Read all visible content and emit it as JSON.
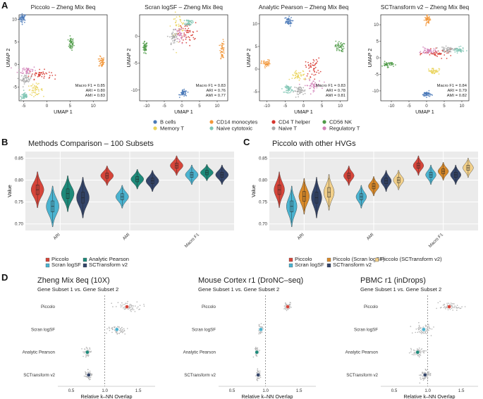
{
  "panel_labels": [
    "A",
    "B",
    "C",
    "D"
  ],
  "colors": {
    "B cells": "#4a79b8",
    "CD14 monocytes": "#f2973a",
    "CD4 T helper": "#d6342c",
    "CD56 NK": "#4e9a46",
    "Memory T": "#ead35a",
    "Naive cytotoxic": "#7fc6b4",
    "Naive T": "#a7a7a7",
    "Regulatory T": "#d283b8",
    "Piccolo": "#d6453a",
    "Scran logSF": "#4bb3d0",
    "Analytic Pearson": "#1e8a7a",
    "SCTransform v2": "#34456a",
    "Piccolo (Scran logSF)": "#d98a2a",
    "Piccolo (SCTransform v2)": "#f2d08a"
  },
  "panelA": {
    "x_label": "UMAP 1",
    "y_label": "UMAP 2",
    "legend": [
      {
        "label": "B cells",
        "icon": "dot"
      },
      {
        "label": "CD14 monocytes",
        "icon": "dot"
      },
      {
        "label": "CD4 T helper",
        "icon": "dot"
      },
      {
        "label": "CD56 NK",
        "icon": "dot"
      },
      {
        "label": "Memory T",
        "icon": "dot"
      },
      {
        "label": "Naive cytotoxic",
        "icon": "dot"
      },
      {
        "label": "Naive T",
        "icon": "dot"
      },
      {
        "label": "Regulatory T",
        "icon": "dot"
      }
    ],
    "plots": [
      {
        "title": "Piccolo – Zheng Mix 8eq",
        "xlim": [
          -6,
          13
        ],
        "ylim": [
          -8,
          11
        ],
        "xticks": [
          "-5",
          "0",
          "5",
          "10"
        ],
        "xtick_vals": [
          -5,
          0,
          5,
          10
        ],
        "yticks": [
          "-5",
          "0",
          "5",
          "10"
        ],
        "ytick_vals": [
          -5,
          0,
          5,
          10
        ],
        "metrics": [
          "Macro F1 = 0.85",
          "ARI = 0.80",
          "AMI = 0.83"
        ],
        "clusters": [
          {
            "type": "B cells",
            "x": -5.2,
            "y": 10.2,
            "sx": 0.35,
            "sy": 0.5
          },
          {
            "type": "CD56 NK",
            "x": 5.2,
            "y": 4.6,
            "sx": 0.3,
            "sy": 0.7
          },
          {
            "type": "CD14 monocytes",
            "x": 11.8,
            "y": 0.6,
            "sx": 0.3,
            "sy": 0.6
          },
          {
            "type": "Regulatory T",
            "x": -4.2,
            "y": -1.3,
            "sx": 1.0,
            "sy": 0.5
          },
          {
            "type": "CD4 T helper",
            "x": -1.5,
            "y": -2.2,
            "sx": 1.2,
            "sy": 0.5
          },
          {
            "type": "Naive T",
            "x": -4.5,
            "y": -3.2,
            "sx": 0.6,
            "sy": 0.5
          },
          {
            "type": "Memory T",
            "x": -2.5,
            "y": -5.5,
            "sx": 0.8,
            "sy": 0.6
          },
          {
            "type": "Naive cytotoxic",
            "x": -4.8,
            "y": -7.0,
            "sx": 0.4,
            "sy": 0.4
          }
        ]
      },
      {
        "title": "Scran logSF – Zheng Mix 8eq",
        "xlim": [
          -12,
          13
        ],
        "ylim": [
          -12,
          4
        ],
        "xticks": [
          "-10",
          "-5",
          "0",
          "5",
          "10"
        ],
        "xtick_vals": [
          -10,
          -5,
          0,
          5,
          10
        ],
        "yticks": [
          "-10",
          "-5",
          "0"
        ],
        "ytick_vals": [
          -10,
          -5,
          0
        ],
        "metrics": [
          "Macro F1 = 0.83",
          "ARI = 0.76",
          "AMI = 0.77"
        ],
        "clusters": [
          {
            "type": "CD56 NK",
            "x": -10.5,
            "y": -2.2,
            "sx": 0.35,
            "sy": 0.6
          },
          {
            "type": "B cells",
            "x": 0.5,
            "y": -10.6,
            "sx": 0.5,
            "sy": 0.3
          },
          {
            "type": "CD14 monocytes",
            "x": 11.5,
            "y": -2.5,
            "sx": 0.3,
            "sy": 0.8
          },
          {
            "type": "Memory T",
            "x": -1.0,
            "y": 1.8,
            "sx": 1.0,
            "sy": 1.2
          },
          {
            "type": "CD4 T helper",
            "x": 1.5,
            "y": 0.5,
            "sx": 1.2,
            "sy": 1.0
          },
          {
            "type": "Regulatory T",
            "x": -0.5,
            "y": 0.3,
            "sx": 0.8,
            "sy": 0.9
          },
          {
            "type": "Naive T",
            "x": -2.3,
            "y": -0.2,
            "sx": 0.6,
            "sy": 0.8
          },
          {
            "type": "Naive cytotoxic",
            "x": 2.0,
            "y": 2.6,
            "sx": 0.5,
            "sy": 0.3
          }
        ]
      },
      {
        "title": "Analytic Pearson – Zheng Mix 8eq",
        "xlim": [
          -12,
          12
        ],
        "ylim": [
          -7,
          12
        ],
        "xticks": [
          "-10",
          "-5",
          "0",
          "5",
          "10"
        ],
        "xtick_vals": [
          -10,
          -5,
          0,
          5,
          10
        ],
        "yticks": [
          "-5",
          "0",
          "5",
          "10"
        ],
        "ytick_vals": [
          -5,
          0,
          5,
          10
        ],
        "metrics": [
          "Macro F1 = 0.83",
          "ARI = 0.78",
          "AMI = 0.81"
        ],
        "clusters": [
          {
            "type": "B cells",
            "x": -4.3,
            "y": 10.5,
            "sx": 0.6,
            "sy": 0.5
          },
          {
            "type": "CD56 NK",
            "x": 9.8,
            "y": 5.0,
            "sx": 0.6,
            "sy": 0.6
          },
          {
            "type": "CD14 monocytes",
            "x": -10.2,
            "y": 1.2,
            "sx": 0.6,
            "sy": 0.4
          },
          {
            "type": "Memory T",
            "x": -1.2,
            "y": -1.5,
            "sx": 1.2,
            "sy": 0.6
          },
          {
            "type": "CD4 T helper",
            "x": 2.5,
            "y": 0.4,
            "sx": 1.0,
            "sy": 1.0
          },
          {
            "type": "Regulatory T",
            "x": 2.5,
            "y": -3.6,
            "sx": 1.2,
            "sy": 0.6
          },
          {
            "type": "Naive T",
            "x": -1.0,
            "y": -4.8,
            "sx": 0.8,
            "sy": 0.5
          },
          {
            "type": "Naive cytotoxic",
            "x": -4.0,
            "y": -4.4,
            "sx": 0.5,
            "sy": 0.4
          }
        ]
      },
      {
        "title": "SCTransform v2 – Zheng Mix 8eq",
        "xlim": [
          -13,
          12
        ],
        "ylim": [
          -13,
          13
        ],
        "xticks": [
          "-10",
          "-5",
          "0",
          "5",
          "10"
        ],
        "xtick_vals": [
          -10,
          -5,
          0,
          5,
          10
        ],
        "yticks": [
          "-10",
          "-5",
          "0",
          "5",
          "10"
        ],
        "ytick_vals": [
          -10,
          -5,
          0,
          5,
          10
        ],
        "metrics": [
          "Macro F1 = 0.84",
          "ARI = 0.79",
          "AMI = 0.82"
        ],
        "clusters": [
          {
            "type": "CD14 monocytes",
            "x": 0.3,
            "y": 11.5,
            "sx": 0.4,
            "sy": 0.6
          },
          {
            "type": "CD56 NK",
            "x": -11.0,
            "y": -2.0,
            "sx": 0.8,
            "sy": 0.4
          },
          {
            "type": "B cells",
            "x": 0.0,
            "y": -11.0,
            "sx": 0.6,
            "sy": 0.4
          },
          {
            "type": "CD4 T helper",
            "x": 3.5,
            "y": 1.3,
            "sx": 2.0,
            "sy": 0.6
          },
          {
            "type": "Naive cytotoxic",
            "x": 9.0,
            "y": 2.3,
            "sx": 0.8,
            "sy": 0.4
          },
          {
            "type": "Regulatory T",
            "x": 0.5,
            "y": 2.0,
            "sx": 1.0,
            "sy": 0.5
          },
          {
            "type": "Naive T",
            "x": 6.0,
            "y": 2.5,
            "sx": 1.0,
            "sy": 0.4
          },
          {
            "type": "Memory T",
            "x": 2.0,
            "y": -4.0,
            "sx": 0.8,
            "sy": 0.5
          }
        ]
      }
    ]
  },
  "chart_data": [
    {
      "type": "violin",
      "panel": "B",
      "title": "Methods Comparison – 100 Subsets",
      "ylabel": "Value",
      "categories": [
        "ARI",
        "AMI",
        "Macro F1"
      ],
      "ylim": [
        0.685,
        0.865
      ],
      "yticks": [
        "0.70",
        "0.75",
        "0.80",
        "0.85"
      ],
      "ytick_vals": [
        0.7,
        0.75,
        0.8,
        0.85
      ],
      "series": [
        {
          "name": "Piccolo",
          "medians": [
            0.778,
            0.81,
            0.833
          ],
          "spread": [
            0.022,
            0.012,
            0.012
          ]
        },
        {
          "name": "Scran logSF",
          "medians": [
            0.74,
            0.762,
            0.812
          ],
          "spread": [
            0.025,
            0.014,
            0.012
          ]
        },
        {
          "name": "Analytic Pearson",
          "medians": [
            0.769,
            0.802,
            0.817
          ],
          "spread": [
            0.022,
            0.012,
            0.01
          ]
        },
        {
          "name": "SCTransform v2",
          "medians": [
            0.76,
            0.798,
            0.812
          ],
          "spread": [
            0.025,
            0.013,
            0.012
          ]
        }
      ],
      "legend_labels": [
        "Piccolo",
        "Scran logSF",
        "Analytic Pearson",
        "SCTransform v2"
      ]
    },
    {
      "type": "violin",
      "panel": "C",
      "title": "Piccolo with other HVGs",
      "ylabel": "Value",
      "categories": [
        "ARI",
        "AMI",
        "Macro F1"
      ],
      "ylim": [
        0.685,
        0.865
      ],
      "yticks": [
        "0.70",
        "0.75",
        "0.80",
        "0.85"
      ],
      "ytick_vals": [
        0.7,
        0.75,
        0.8,
        0.85
      ],
      "series": [
        {
          "name": "Piccolo",
          "medians": [
            0.778,
            0.81,
            0.833
          ],
          "spread": [
            0.022,
            0.012,
            0.012
          ]
        },
        {
          "name": "Scran logSF",
          "medians": [
            0.74,
            0.762,
            0.812
          ],
          "spread": [
            0.025,
            0.014,
            0.012
          ]
        },
        {
          "name": "Piccolo (Scran logSF)",
          "medians": [
            0.763,
            0.786,
            0.82
          ],
          "spread": [
            0.022,
            0.012,
            0.011
          ]
        },
        {
          "name": "SCTransform v2",
          "medians": [
            0.76,
            0.798,
            0.812
          ],
          "spread": [
            0.025,
            0.013,
            0.012
          ]
        },
        {
          "name": "Piccolo (SCTransform v2)",
          "medians": [
            0.772,
            0.8,
            0.828
          ],
          "spread": [
            0.022,
            0.012,
            0.012
          ]
        }
      ],
      "legend_labels": [
        "Piccolo",
        "Scran logSF",
        "Piccolo (Scran logSF)",
        "SCTransform v2",
        "Piccolo (SCTransform v2)"
      ]
    },
    {
      "type": "dot-swarm",
      "panel": "D",
      "title": "Zheng Mix 8eq (10X)",
      "subtitle": "Gene Subset 1 vs. Gene Subset 2",
      "xlabel": "Relative k–NN Overlap",
      "xlim": [
        0.3,
        1.75
      ],
      "xticks": [
        "0.5",
        "1.0",
        "1.5"
      ],
      "xtick_vals": [
        0.5,
        1.0,
        1.5
      ],
      "reference_line": 1.0,
      "categories": [
        "Piccolo",
        "Scran logSF",
        "Analytic Pearson",
        "SCTransform v2"
      ],
      "means": [
        1.33,
        1.18,
        0.74,
        0.76
      ],
      "spread": [
        0.09,
        0.06,
        0.025,
        0.025
      ]
    },
    {
      "type": "dot-swarm",
      "panel": "D",
      "title": "Mouse Cortex r1 (DroNC–seq)",
      "subtitle": "Gene Subset 1 vs. Gene Subset 2",
      "xlabel": "Relative k–NN Overlap",
      "xlim": [
        0.3,
        1.75
      ],
      "xticks": [
        "0.5",
        "1.0",
        "1.5"
      ],
      "xtick_vals": [
        0.5,
        1.0,
        1.5
      ],
      "reference_line": 1.0,
      "categories": [
        "Piccolo",
        "Scran logSF",
        "Analytic Pearson",
        "SCTransform v2"
      ],
      "means": [
        1.33,
        0.93,
        0.87,
        0.89
      ],
      "spread": [
        0.03,
        0.015,
        0.015,
        0.015
      ]
    },
    {
      "type": "dot-swarm",
      "panel": "D",
      "title": "PBMC r1 (inDrops)",
      "subtitle": "Gene Subset 1 vs. Gene Subset 2",
      "xlabel": "Relative k–NN Overlap",
      "xlim": [
        0.3,
        1.75
      ],
      "xticks": [
        "0.5",
        "1.0",
        "1.5"
      ],
      "xtick_vals": [
        0.5,
        1.0,
        1.5
      ],
      "reference_line": 1.0,
      "categories": [
        "Piccolo",
        "Scran logSF",
        "Analytic Pearson",
        "SCTransform v2"
      ],
      "means": [
        1.32,
        0.94,
        0.85,
        0.96
      ],
      "spread": [
        0.09,
        0.07,
        0.05,
        0.04
      ]
    }
  ]
}
